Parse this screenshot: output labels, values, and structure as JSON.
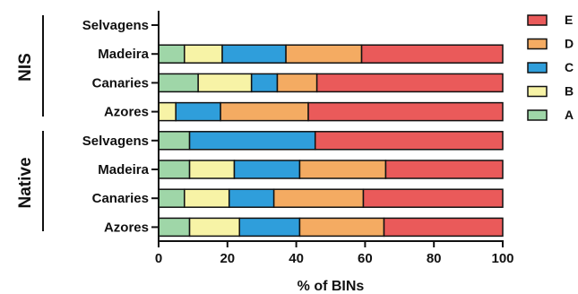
{
  "chart_data": {
    "type": "bar",
    "orientation": "horizontal",
    "stacked": true,
    "categories": [
      "Selvagens",
      "Madeira",
      "Canaries",
      "Azores",
      "Selvagens",
      "Madeira",
      "Canaries",
      "Azores"
    ],
    "groups": [
      {
        "label": "NIS",
        "categories": [
          0,
          1,
          2,
          3
        ]
      },
      {
        "label": "Native",
        "categories": [
          4,
          5,
          6,
          7
        ]
      }
    ],
    "series": [
      {
        "name": "A",
        "color": "#9fd6a8",
        "values": [
          0,
          7.5,
          11.5,
          0,
          9,
          9,
          7.5,
          9
        ]
      },
      {
        "name": "B",
        "color": "#f7f3a6",
        "values": [
          0,
          11,
          15.5,
          5,
          0,
          13,
          13,
          14.5
        ]
      },
      {
        "name": "C",
        "color": "#2f9edb",
        "values": [
          0,
          18.5,
          7.5,
          13,
          36.5,
          19,
          13,
          17.5
        ]
      },
      {
        "name": "D",
        "color": "#f4ab62",
        "values": [
          0,
          22,
          11.5,
          25.5,
          0,
          25,
          26,
          24.5
        ]
      },
      {
        "name": "E",
        "color": "#ea5a5a",
        "values": [
          0,
          41,
          54,
          56.5,
          54.5,
          34,
          40.5,
          34.5
        ]
      }
    ],
    "xlabel": "% of BINs",
    "xlim": [
      0,
      100
    ],
    "xticks": [
      "0",
      "20",
      "40",
      "60",
      "80",
      "100"
    ],
    "legend": {
      "placement": "top-right",
      "order": [
        "E",
        "D",
        "C",
        "B",
        "A"
      ]
    }
  }
}
